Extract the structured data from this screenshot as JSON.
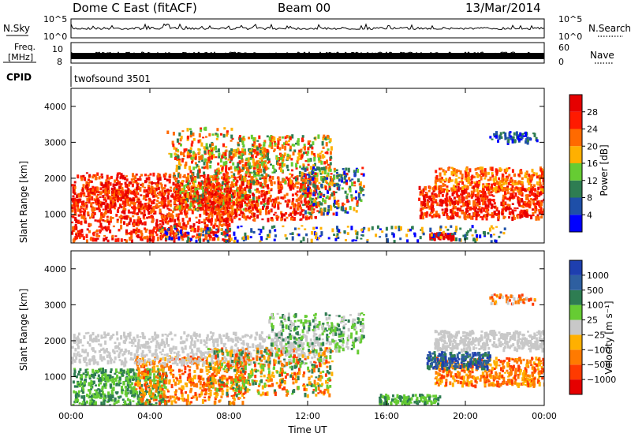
{
  "header": {
    "title": "Dome C East (fitACF)",
    "beam": "Beam 00",
    "date": "13/Mar/2014"
  },
  "panels": {
    "nsky": {
      "label": "N.Sky",
      "ytick_top": "10^5",
      "ytick_bottom": "10^0"
    },
    "nsearch": {
      "label": "N.Search",
      "ytick_top": "10^5",
      "ytick_bottom": "10^0"
    },
    "freq": {
      "label_line1": "Freq.",
      "label_line2": "[MHz]",
      "ytick_top": "10",
      "ytick_bottom": "8"
    },
    "nave": {
      "label": "Nave",
      "ytick_top": "60",
      "ytick_bottom": "0"
    },
    "cpid": {
      "label": "CPID",
      "value": "twofsound 3501"
    }
  },
  "chart_data": [
    {
      "type": "heatmap",
      "name": "power",
      "ylabel": "Slant Range [km]",
      "xlabel": "",
      "ylim": [
        200,
        4500
      ],
      "yticks": [
        "1000",
        "2000",
        "3000",
        "4000"
      ],
      "colorbar_label": "Power [dB]",
      "colorbar_ticks": [
        "4",
        "8",
        "12",
        "16",
        "20",
        "24",
        "28"
      ],
      "colors": [
        "#0000ff",
        "#1e4fa8",
        "#2e7d52",
        "#66cc33",
        "#ffb000",
        "#ff6a00",
        "#ff1a00",
        "#e60000"
      ]
    },
    {
      "type": "heatmap",
      "name": "velocity",
      "ylabel": "Slant Range [km]",
      "xlabel": "Time UT",
      "ylim": [
        200,
        4500
      ],
      "yticks": [
        "1000",
        "2000",
        "3000",
        "4000"
      ],
      "xticks": [
        "00:00",
        "04:00",
        "08:00",
        "12:00",
        "16:00",
        "20:00",
        "00:00"
      ],
      "colorbar_label": "Velocity [m s⁻¹]",
      "colorbar_ticks": [
        "1000",
        "500",
        "100",
        "25",
        "−25",
        "−100",
        "−500",
        "−1000"
      ],
      "colors": [
        "#1e3faf",
        "#2e5fa0",
        "#2e7d52",
        "#66cc33",
        "#c8c8c8",
        "#ffb000",
        "#ff7a00",
        "#ff3a00",
        "#e60000"
      ]
    }
  ]
}
